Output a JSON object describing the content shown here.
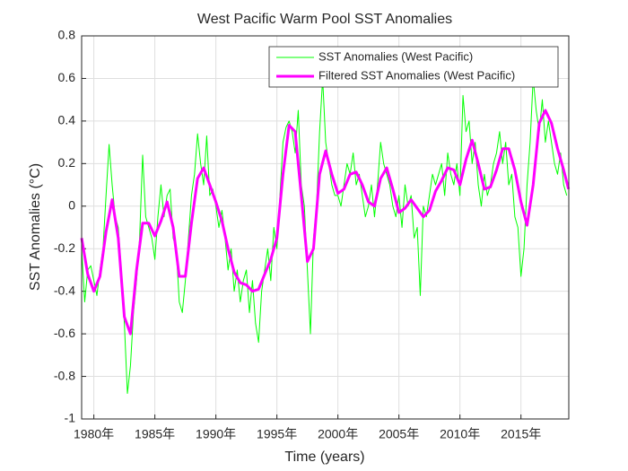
{
  "chart_data": {
    "type": "line",
    "title": "West Pacific Warm Pool SST Anomalies",
    "xlabel": "Time (years)",
    "ylabel": "SST Anomalies (°C)",
    "xlim": [
      1979,
      2018.92
    ],
    "ylim": [
      -1,
      0.8
    ],
    "xticks": [
      {
        "value": 1980,
        "label": "1980年"
      },
      {
        "value": 1985,
        "label": "1985年"
      },
      {
        "value": 1990,
        "label": "1990年"
      },
      {
        "value": 1995,
        "label": "1995年"
      },
      {
        "value": 2000,
        "label": "2000年"
      },
      {
        "value": 2005,
        "label": "2005年"
      },
      {
        "value": 2010,
        "label": "2010年"
      },
      {
        "value": 2015,
        "label": "2015年"
      }
    ],
    "yticks": [
      -1,
      -0.8,
      -0.6,
      -0.4,
      -0.2,
      0,
      0.2,
      0.4,
      0.6,
      0.8
    ],
    "grid": true,
    "legend": "northeast",
    "series": [
      {
        "name": "SST Anomalies (West Pacific)",
        "color": "#00ff00",
        "width": 1,
        "x": [
          1979,
          1979.25,
          1979.5,
          1979.75,
          1980,
          1980.25,
          1980.5,
          1980.75,
          1981,
          1981.25,
          1981.5,
          1981.75,
          1982,
          1982.25,
          1982.5,
          1982.75,
          1983,
          1983.25,
          1983.5,
          1983.75,
          1984,
          1984.25,
          1984.5,
          1984.75,
          1985,
          1985.25,
          1985.5,
          1985.75,
          1986,
          1986.25,
          1986.5,
          1986.75,
          1987,
          1987.25,
          1987.5,
          1987.75,
          1988,
          1988.25,
          1988.5,
          1988.75,
          1989,
          1989.25,
          1989.5,
          1989.75,
          1990,
          1990.25,
          1990.5,
          1990.75,
          1991,
          1991.25,
          1991.5,
          1991.75,
          1992,
          1992.25,
          1992.5,
          1992.75,
          1993,
          1993.25,
          1993.5,
          1993.75,
          1994,
          1994.25,
          1994.5,
          1994.75,
          1995,
          1995.25,
          1995.5,
          1995.75,
          1996,
          1996.25,
          1996.5,
          1996.75,
          1997,
          1997.25,
          1997.5,
          1997.75,
          1998,
          1998.25,
          1998.5,
          1998.75,
          1999,
          1999.25,
          1999.5,
          1999.75,
          2000,
          2000.25,
          2000.5,
          2000.75,
          2001,
          2001.25,
          2001.5,
          2001.75,
          2002,
          2002.25,
          2002.5,
          2002.75,
          2003,
          2003.25,
          2003.5,
          2003.75,
          2004,
          2004.25,
          2004.5,
          2004.75,
          2005,
          2005.25,
          2005.5,
          2005.75,
          2006,
          2006.25,
          2006.5,
          2006.75,
          2007,
          2007.25,
          2007.5,
          2007.75,
          2008,
          2008.25,
          2008.5,
          2008.75,
          2009,
          2009.25,
          2009.5,
          2009.75,
          2010,
          2010.25,
          2010.5,
          2010.75,
          2011,
          2011.25,
          2011.5,
          2011.75,
          2012,
          2012.25,
          2012.5,
          2012.75,
          2013,
          2013.25,
          2013.5,
          2013.75,
          2014,
          2014.25,
          2014.5,
          2014.75,
          2015,
          2015.25,
          2015.5,
          2015.75,
          2016,
          2016.25,
          2016.5,
          2016.75,
          2017,
          2017.25,
          2017.5,
          2017.75,
          2018,
          2018.25,
          2018.5,
          2018.75
        ],
        "values": [
          -0.2,
          -0.45,
          -0.3,
          -0.28,
          -0.35,
          -0.42,
          -0.3,
          -0.2,
          0.05,
          0.29,
          0.1,
          -0.05,
          -0.1,
          -0.3,
          -0.55,
          -0.88,
          -0.75,
          -0.5,
          -0.35,
          -0.15,
          0.24,
          -0.05,
          -0.1,
          -0.15,
          -0.25,
          -0.05,
          0.1,
          -0.05,
          0.05,
          0.08,
          -0.15,
          -0.2,
          -0.45,
          -0.5,
          -0.35,
          -0.15,
          0.05,
          0.15,
          0.34,
          0.2,
          0.1,
          0.33,
          0.05,
          0.08,
          0,
          -0.1,
          -0.02,
          -0.15,
          -0.3,
          -0.2,
          -0.4,
          -0.3,
          -0.45,
          -0.35,
          -0.3,
          -0.5,
          -0.35,
          -0.55,
          -0.64,
          -0.4,
          -0.3,
          -0.2,
          -0.35,
          -0.1,
          -0.2,
          0.05,
          0.3,
          0.37,
          0.4,
          0.35,
          0.25,
          0.45,
          0.1,
          0,
          -0.3,
          -0.6,
          -0.15,
          0,
          0.35,
          0.6,
          0.3,
          0.2,
          0.1,
          0.05,
          0.05,
          0,
          0.1,
          0.2,
          0.15,
          0.25,
          0.1,
          0.15,
          0.05,
          -0.05,
          0,
          0.1,
          -0.05,
          0.1,
          0.3,
          0.2,
          0.15,
          0.1,
          0,
          -0.05,
          0.05,
          -0.1,
          0.1,
          0,
          0.05,
          -0.15,
          -0.1,
          -0.42,
          0,
          -0.05,
          0.05,
          0.15,
          0.1,
          0.15,
          0.2,
          0.05,
          0.25,
          0.15,
          0.1,
          0.2,
          0.05,
          0.52,
          0.35,
          0.4,
          0.2,
          0.3,
          0.1,
          0,
          0.15,
          0.05,
          0.1,
          0.2,
          0.25,
          0.35,
          0.2,
          0.3,
          0.1,
          0.15,
          -0.05,
          -0.1,
          -0.33,
          -0.2,
          0.1,
          0.3,
          0.6,
          0.45,
          0.35,
          0.5,
          0.3,
          0.4,
          0.3,
          0.2,
          0.15,
          0.25,
          0.1,
          0.05
        ]
      },
      {
        "name": "Filtered SST Anomalies (West Pacific)",
        "color": "#ff00ff",
        "width": 3,
        "x": [
          1979,
          1979.5,
          1980,
          1980.5,
          1981,
          1981.5,
          1982,
          1982.5,
          1983,
          1983.5,
          1984,
          1984.5,
          1985,
          1985.5,
          1986,
          1986.5,
          1987,
          1987.5,
          1988,
          1988.5,
          1989,
          1989.5,
          1990,
          1990.5,
          1991,
          1991.5,
          1992,
          1992.5,
          1993,
          1993.5,
          1994,
          1994.5,
          1995,
          1995.5,
          1996,
          1996.5,
          1997,
          1997.5,
          1998,
          1998.5,
          1999,
          1999.5,
          2000,
          2000.5,
          2001,
          2001.5,
          2002,
          2002.5,
          2003,
          2003.5,
          2004,
          2004.5,
          2005,
          2005.5,
          2006,
          2006.5,
          2007,
          2007.5,
          2008,
          2008.5,
          2009,
          2009.5,
          2010,
          2010.5,
          2011,
          2011.5,
          2012,
          2012.5,
          2013,
          2013.5,
          2014,
          2014.5,
          2015,
          2015.5,
          2016,
          2016.5,
          2017,
          2017.5,
          2018,
          2018.5,
          2018.9
        ],
        "values": [
          -0.15,
          -0.32,
          -0.4,
          -0.33,
          -0.12,
          0.03,
          -0.15,
          -0.52,
          -0.6,
          -0.3,
          -0.08,
          -0.08,
          -0.14,
          -0.07,
          0.02,
          -0.1,
          -0.33,
          -0.33,
          -0.08,
          0.13,
          0.18,
          0.1,
          0.02,
          -0.07,
          -0.2,
          -0.31,
          -0.36,
          -0.37,
          -0.4,
          -0.39,
          -0.32,
          -0.25,
          -0.15,
          0.15,
          0.38,
          0.35,
          0.05,
          -0.26,
          -0.2,
          0.15,
          0.26,
          0.15,
          0.06,
          0.08,
          0.15,
          0.16,
          0.1,
          0.02,
          0,
          0.13,
          0.18,
          0.08,
          -0.03,
          -0.01,
          0.03,
          -0.01,
          -0.05,
          -0.02,
          0.07,
          0.12,
          0.18,
          0.17,
          0.1,
          0.22,
          0.31,
          0.2,
          0.08,
          0.09,
          0.17,
          0.27,
          0.27,
          0.17,
          0.02,
          -0.09,
          0.1,
          0.39,
          0.45,
          0.39,
          0.27,
          0.17,
          0.08
        ]
      }
    ]
  }
}
